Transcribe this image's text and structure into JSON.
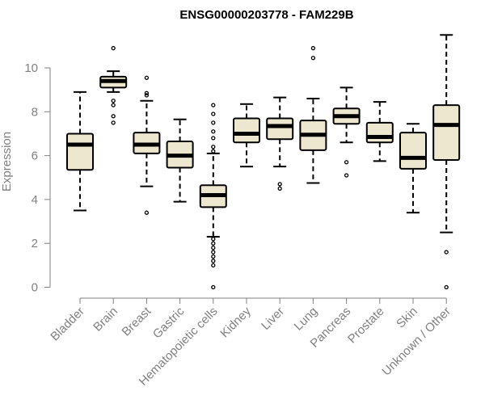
{
  "chart_data": {
    "type": "box",
    "title": "ENSG00000203778 - FAM229B",
    "xlabel": "",
    "ylabel": "Expression",
    "ylim": [
      0,
      11.5
    ],
    "yticks": [
      0,
      2,
      4,
      6,
      8,
      10
    ],
    "box_fill": "#ede7d0",
    "categories": [
      "Bladder",
      "Brain",
      "Breast",
      "Gastric",
      "Hematopoietic cells",
      "Kidney",
      "Liver",
      "Lung",
      "Pancreas",
      "Prostate",
      "Skin",
      "Unknown / Other"
    ],
    "boxes": [
      {
        "name": "Bladder",
        "whisker_low": 3.5,
        "q1": 5.35,
        "median": 6.5,
        "q3": 7.0,
        "whisker_high": 8.9,
        "outliers": []
      },
      {
        "name": "Brain",
        "whisker_low": 8.9,
        "q1": 9.1,
        "median": 9.4,
        "q3": 9.6,
        "whisker_high": 9.85,
        "outliers": [
          10.9,
          8.5,
          8.3,
          7.8,
          7.5
        ]
      },
      {
        "name": "Breast",
        "whisker_low": 4.6,
        "q1": 6.1,
        "median": 6.5,
        "q3": 7.05,
        "whisker_high": 8.5,
        "outliers": [
          9.55,
          8.85,
          8.75,
          3.4
        ]
      },
      {
        "name": "Gastric",
        "whisker_low": 3.9,
        "q1": 5.45,
        "median": 6.0,
        "q3": 6.65,
        "whisker_high": 7.65,
        "outliers": []
      },
      {
        "name": "Hematopoietic cells",
        "whisker_low": 2.3,
        "q1": 3.65,
        "median": 4.2,
        "q3": 4.65,
        "whisker_high": 6.1,
        "outliers": [
          8.3,
          7.9,
          7.5,
          7.1,
          6.8,
          6.4,
          6.2,
          2.2,
          2.0,
          1.8,
          1.6,
          1.4,
          1.2,
          1.0,
          0.0
        ]
      },
      {
        "name": "Kidney",
        "whisker_low": 5.5,
        "q1": 6.6,
        "median": 7.0,
        "q3": 7.7,
        "whisker_high": 8.35,
        "outliers": []
      },
      {
        "name": "Liver",
        "whisker_low": 5.5,
        "q1": 6.75,
        "median": 7.35,
        "q3": 7.7,
        "whisker_high": 8.65,
        "outliers": [
          4.7,
          4.5
        ]
      },
      {
        "name": "Lung",
        "whisker_low": 4.75,
        "q1": 6.25,
        "median": 6.95,
        "q3": 7.6,
        "whisker_high": 8.6,
        "outliers": [
          10.9,
          10.45
        ]
      },
      {
        "name": "Pancreas",
        "whisker_low": 6.6,
        "q1": 7.45,
        "median": 7.8,
        "q3": 8.15,
        "whisker_high": 9.1,
        "outliers": [
          5.7,
          5.1
        ]
      },
      {
        "name": "Prostate",
        "whisker_low": 5.75,
        "q1": 6.6,
        "median": 6.85,
        "q3": 7.5,
        "whisker_high": 8.45,
        "outliers": []
      },
      {
        "name": "Skin",
        "whisker_low": 3.4,
        "q1": 5.4,
        "median": 5.9,
        "q3": 7.05,
        "whisker_high": 7.45,
        "outliers": []
      },
      {
        "name": "Unknown / Other",
        "whisker_low": 2.5,
        "q1": 5.8,
        "median": 7.4,
        "q3": 8.3,
        "whisker_high": 11.5,
        "outliers": [
          1.6,
          0.0
        ]
      }
    ]
  }
}
